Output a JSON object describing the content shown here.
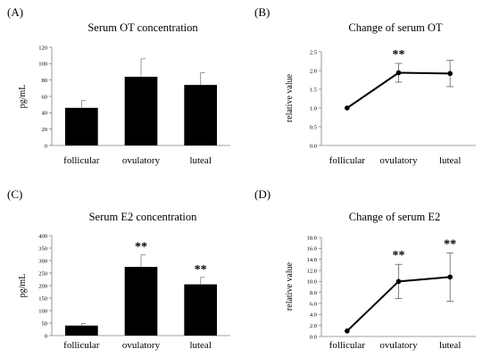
{
  "chart_data": [
    {
      "panel_label": "(A)",
      "type": "bar",
      "title": "Serum OT concentration",
      "ylabel": "pg/mL",
      "categories": [
        "follicular",
        "ovulatory",
        "luteal"
      ],
      "values": [
        46,
        84,
        74
      ],
      "errors": [
        9,
        22,
        15
      ],
      "significance": [
        "",
        "",
        ""
      ],
      "ylim": [
        0,
        120
      ],
      "yticks": [
        0,
        20,
        40,
        60,
        80,
        100,
        120
      ],
      "yticklabels": [
        "0",
        "20",
        "40",
        "60",
        "80",
        "100",
        "120"
      ],
      "color": "#000000"
    },
    {
      "panel_label": "(B)",
      "type": "line",
      "title": "Change of serum OT",
      "ylabel": "relative value",
      "categories": [
        "follicular",
        "ovulatory",
        "luteal"
      ],
      "values": [
        1.0,
        1.94,
        1.92
      ],
      "errors": [
        0,
        0.25,
        0.35
      ],
      "significance": [
        "",
        "**",
        ""
      ],
      "ylim": [
        0,
        2.5
      ],
      "yticks": [
        0,
        0.5,
        1.0,
        1.5,
        2.0,
        2.5
      ],
      "yticklabels": [
        "0.0",
        "0.5",
        "1.0",
        "1.5",
        "2.0",
        "2.5"
      ],
      "color": "#000000"
    },
    {
      "panel_label": "(C)",
      "type": "bar",
      "title": "Serum E2 concentration",
      "ylabel": "pg/mL",
      "categories": [
        "follicular",
        "ovulatory",
        "luteal"
      ],
      "values": [
        40,
        275,
        205
      ],
      "errors": [
        8,
        48,
        28
      ],
      "significance": [
        "",
        "**",
        "**"
      ],
      "ylim": [
        0,
        400
      ],
      "yticks": [
        0,
        50,
        100,
        150,
        200,
        250,
        300,
        350,
        400
      ],
      "yticklabels": [
        "0",
        "50",
        "100",
        "150",
        "200",
        "250",
        "300",
        "350",
        "400"
      ],
      "color": "#000000"
    },
    {
      "panel_label": "(D)",
      "type": "line",
      "title": "Change of serum E2",
      "ylabel": "relative value",
      "categories": [
        "follicular",
        "ovulatory",
        "luteal"
      ],
      "values": [
        1.0,
        10.0,
        10.8
      ],
      "errors": [
        0,
        3.1,
        4.4
      ],
      "significance": [
        "",
        "**",
        "**"
      ],
      "ylim": [
        0,
        18
      ],
      "yticks": [
        0,
        2,
        4,
        6,
        8,
        10,
        12,
        14,
        16,
        18
      ],
      "yticklabels": [
        "0.0",
        "2.0",
        "4.0",
        "6.0",
        "8.0",
        "10.0",
        "12.0",
        "14.0",
        "16.0",
        "18.0"
      ],
      "color": "#000000"
    }
  ]
}
